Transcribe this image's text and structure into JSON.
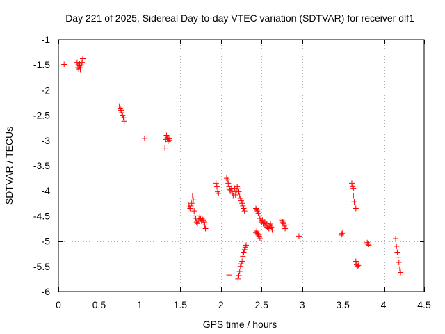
{
  "chart_data": {
    "type": "scatter",
    "title": "Day 221 of 2025, Sidereal Day-to-day VTEC variation (SDTVAR) for receiver dlf1",
    "xlabel": "GPS time / hours",
    "ylabel": "SDTVAR / TECUs",
    "xlim": [
      0,
      4.5
    ],
    "ylim": [
      -6,
      -1
    ],
    "x_ticks": [
      0,
      0.5,
      1,
      1.5,
      2,
      2.5,
      3,
      3.5,
      4,
      4.5
    ],
    "x_tick_labels": [
      "0",
      "0.5",
      "1",
      "1.5",
      "2",
      "2.5",
      "3",
      "3.5",
      "4",
      "4.5"
    ],
    "y_ticks": [
      -1,
      -1.5,
      -2,
      -2.5,
      -3,
      -3.5,
      -4,
      -4.5,
      -5,
      -5.5,
      -6
    ],
    "y_tick_labels": [
      "-1",
      "-1.5",
      "-2",
      "-2.5",
      "-3",
      "-3.5",
      "-4",
      "-4.5",
      "-5",
      "-5.5",
      "-6"
    ],
    "grid": true,
    "marker": "+",
    "color": "#ff0000",
    "series": [
      {
        "name": "SDTVAR",
        "points": [
          [
            0.07,
            -1.49
          ],
          [
            0.23,
            -1.45
          ],
          [
            0.24,
            -1.5
          ],
          [
            0.24,
            -1.55
          ],
          [
            0.25,
            -1.58
          ],
          [
            0.26,
            -1.52
          ],
          [
            0.26,
            -1.47
          ],
          [
            0.27,
            -1.55
          ],
          [
            0.27,
            -1.6
          ],
          [
            0.28,
            -1.5
          ],
          [
            0.29,
            -1.45
          ],
          [
            0.3,
            -1.38
          ],
          [
            0.75,
            -2.32
          ],
          [
            0.76,
            -2.36
          ],
          [
            0.77,
            -2.4
          ],
          [
            0.78,
            -2.45
          ],
          [
            0.79,
            -2.5
          ],
          [
            0.8,
            -2.55
          ],
          [
            0.81,
            -2.62
          ],
          [
            1.06,
            -2.96
          ],
          [
            1.31,
            -3.15
          ],
          [
            1.32,
            -2.98
          ],
          [
            1.33,
            -2.9
          ],
          [
            1.34,
            -2.95
          ],
          [
            1.35,
            -3.02
          ],
          [
            1.36,
            -2.97
          ],
          [
            1.37,
            -3.0
          ],
          [
            1.6,
            -4.28
          ],
          [
            1.61,
            -4.32
          ],
          [
            1.62,
            -4.35
          ],
          [
            1.63,
            -4.3
          ],
          [
            1.64,
            -4.25
          ],
          [
            1.65,
            -4.1
          ],
          [
            1.66,
            -4.18
          ],
          [
            1.67,
            -4.4
          ],
          [
            1.68,
            -4.5
          ],
          [
            1.69,
            -4.55
          ],
          [
            1.7,
            -4.62
          ],
          [
            1.71,
            -4.65
          ],
          [
            1.72,
            -4.6
          ],
          [
            1.73,
            -4.55
          ],
          [
            1.74,
            -4.5
          ],
          [
            1.75,
            -4.56
          ],
          [
            1.76,
            -4.6
          ],
          [
            1.77,
            -4.55
          ],
          [
            1.78,
            -4.58
          ],
          [
            1.79,
            -4.62
          ],
          [
            1.8,
            -4.68
          ],
          [
            1.81,
            -4.75
          ],
          [
            1.94,
            -3.85
          ],
          [
            1.95,
            -3.92
          ],
          [
            1.96,
            -4.02
          ],
          [
            1.97,
            -4.05
          ],
          [
            2.07,
            -3.75
          ],
          [
            2.08,
            -3.78
          ],
          [
            2.09,
            -3.85
          ],
          [
            2.1,
            -3.92
          ],
          [
            2.11,
            -3.98
          ],
          [
            2.12,
            -4.0
          ],
          [
            2.13,
            -3.95
          ],
          [
            2.14,
            -4.05
          ],
          [
            2.15,
            -4.1
          ],
          [
            2.16,
            -4.02
          ],
          [
            2.17,
            -3.95
          ],
          [
            2.18,
            -4.08
          ],
          [
            2.19,
            -4.0
          ],
          [
            2.2,
            -3.92
          ],
          [
            2.21,
            -3.96
          ],
          [
            2.22,
            -4.02
          ],
          [
            2.23,
            -4.1
          ],
          [
            2.24,
            -4.15
          ],
          [
            2.25,
            -4.2
          ],
          [
            2.26,
            -4.25
          ],
          [
            2.27,
            -4.3
          ],
          [
            2.28,
            -4.35
          ],
          [
            2.29,
            -4.4
          ],
          [
            2.1,
            -5.67
          ],
          [
            2.21,
            -5.75
          ],
          [
            2.22,
            -5.68
          ],
          [
            2.23,
            -5.6
          ],
          [
            2.24,
            -5.5
          ],
          [
            2.25,
            -5.45
          ],
          [
            2.26,
            -5.4
          ],
          [
            2.27,
            -5.3
          ],
          [
            2.28,
            -5.22
          ],
          [
            2.29,
            -5.17
          ],
          [
            2.3,
            -5.12
          ],
          [
            2.31,
            -5.08
          ],
          [
            2.43,
            -4.35
          ],
          [
            2.44,
            -4.38
          ],
          [
            2.45,
            -4.4
          ],
          [
            2.46,
            -4.45
          ],
          [
            2.47,
            -4.5
          ],
          [
            2.48,
            -4.55
          ],
          [
            2.49,
            -4.6
          ],
          [
            2.5,
            -4.62
          ],
          [
            2.51,
            -4.58
          ],
          [
            2.52,
            -4.65
          ],
          [
            2.53,
            -4.68
          ],
          [
            2.54,
            -4.62
          ],
          [
            2.55,
            -4.7
          ],
          [
            2.56,
            -4.65
          ],
          [
            2.57,
            -4.72
          ],
          [
            2.58,
            -4.68
          ],
          [
            2.59,
            -4.75
          ],
          [
            2.6,
            -4.7
          ],
          [
            2.61,
            -4.66
          ],
          [
            2.62,
            -4.72
          ],
          [
            2.63,
            -4.78
          ],
          [
            2.43,
            -4.83
          ],
          [
            2.44,
            -4.8
          ],
          [
            2.45,
            -4.85
          ],
          [
            2.46,
            -4.88
          ],
          [
            2.47,
            -4.9
          ],
          [
            2.48,
            -4.95
          ],
          [
            2.75,
            -4.58
          ],
          [
            2.76,
            -4.62
          ],
          [
            2.77,
            -4.65
          ],
          [
            2.78,
            -4.7
          ],
          [
            2.79,
            -4.75
          ],
          [
            2.8,
            -4.68
          ],
          [
            2.96,
            -4.9
          ],
          [
            3.48,
            -4.88
          ],
          [
            3.49,
            -4.85
          ],
          [
            3.5,
            -4.82
          ],
          [
            3.61,
            -3.85
          ],
          [
            3.62,
            -3.92
          ],
          [
            3.63,
            -3.95
          ],
          [
            3.63,
            -4.1
          ],
          [
            3.64,
            -4.22
          ],
          [
            3.65,
            -4.28
          ],
          [
            3.66,
            -4.35
          ],
          [
            3.66,
            -5.4
          ],
          [
            3.67,
            -5.47
          ],
          [
            3.68,
            -5.5
          ],
          [
            3.69,
            -5.48
          ],
          [
            3.8,
            -5.03
          ],
          [
            3.81,
            -5.06
          ],
          [
            3.82,
            -5.08
          ],
          [
            4.15,
            -4.95
          ],
          [
            4.16,
            -5.1
          ],
          [
            4.17,
            -5.22
          ],
          [
            4.18,
            -5.32
          ],
          [
            4.19,
            -5.42
          ],
          [
            4.2,
            -5.55
          ],
          [
            4.21,
            -5.62
          ]
        ]
      }
    ]
  }
}
